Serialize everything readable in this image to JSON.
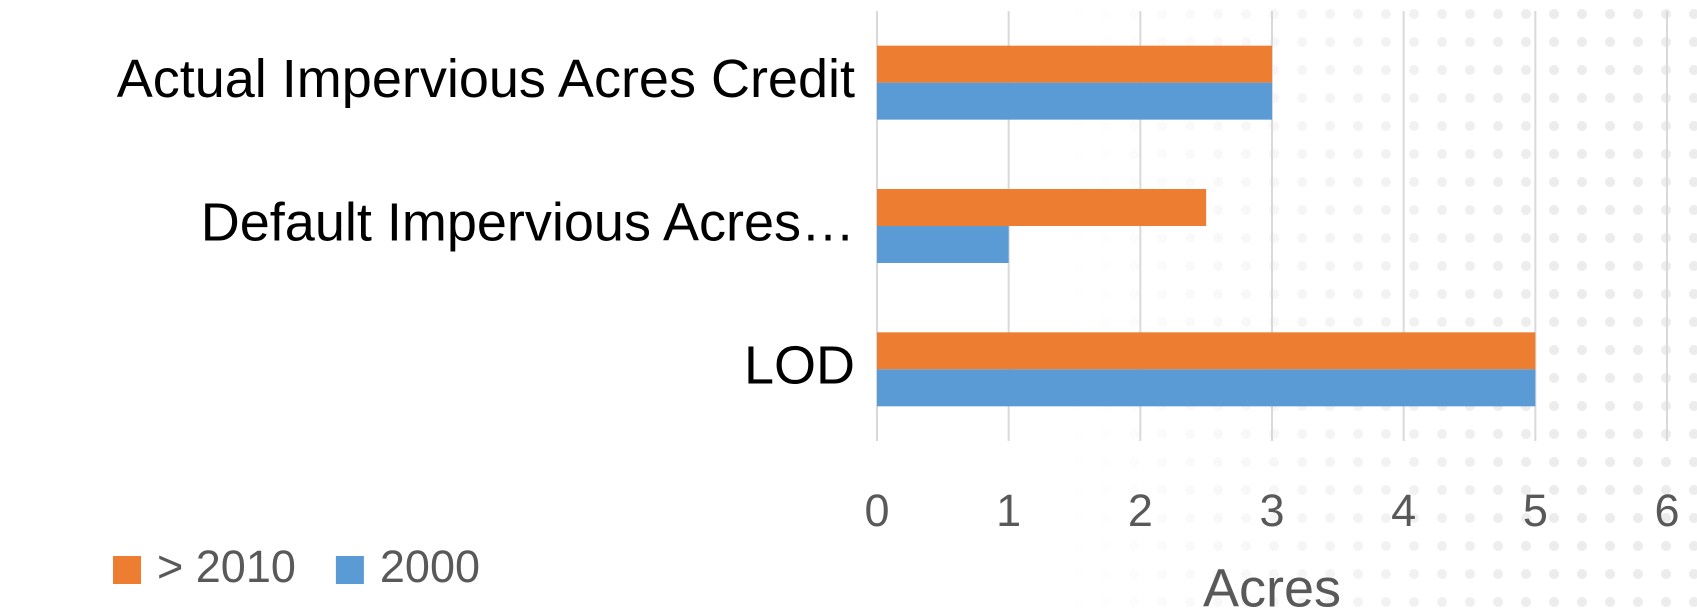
{
  "chart_data": {
    "type": "bar",
    "orientation": "horizontal",
    "categories": [
      "Actual Impervious Acres Credit",
      "Default Impervious Acres…",
      "LOD"
    ],
    "series": [
      {
        "name": "> 2010",
        "color": "#ed7d31",
        "values": [
          3,
          2.5,
          5
        ]
      },
      {
        "name": "2000",
        "color": "#5b9bd5",
        "values": [
          3,
          1,
          5
        ]
      }
    ],
    "x_label": "Acres",
    "xlim": [
      0,
      6
    ],
    "xticks": [
      0,
      1,
      2,
      3,
      4,
      5,
      6
    ],
    "grid": true,
    "legend": "bottom-left"
  }
}
